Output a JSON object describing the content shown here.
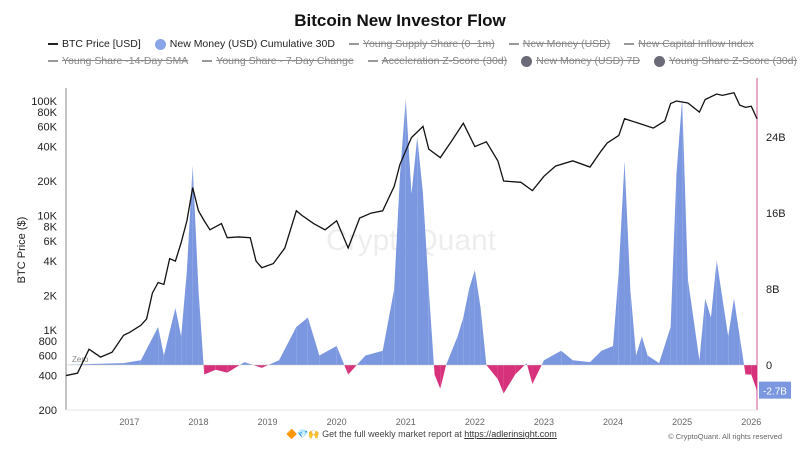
{
  "chart_data": {
    "type": "line+area",
    "title": "Bitcoin New Investor Flow",
    "ylabel_left": "BTC Price ($)",
    "left_axis": {
      "scale": "log",
      "range": [
        200,
        130000
      ],
      "ticks": [
        200,
        400,
        600,
        800,
        1000,
        2000,
        4000,
        6000,
        8000,
        10000,
        20000,
        40000,
        60000,
        80000,
        100000
      ],
      "tick_labels": [
        "200",
        "400",
        "600",
        "800",
        "1K",
        "2K",
        "4K",
        "6K",
        "8K",
        "10K",
        "20K",
        "40K",
        "60K",
        "80K",
        "100K"
      ]
    },
    "right_axis": {
      "scale": "linear",
      "range": [
        -4.7,
        28.5
      ],
      "ticks": [
        0,
        8,
        16,
        24
      ],
      "tick_labels": [
        "0",
        "8B",
        "16B",
        "24B"
      ],
      "last_value_label": "-2.7B"
    },
    "x_axis": {
      "range": [
        "2016-02",
        "2026-02"
      ],
      "tick_labels": [
        "2017",
        "2018",
        "2019",
        "2020",
        "2021",
        "2022",
        "2023",
        "2024",
        "2025",
        "2026"
      ]
    },
    "zero_label": "Zero",
    "grid": false,
    "legend_placement": "top",
    "legend": [
      {
        "label": "BTC Price [USD]",
        "kind": "line",
        "color": "#222222",
        "enabled": true
      },
      {
        "label": "New Money (USD) Cumulative 30D",
        "kind": "dot",
        "color": "#8aa6e8",
        "enabled": true
      },
      {
        "label": "Young Supply Share (0~1m)",
        "kind": "line",
        "enabled": false
      },
      {
        "label": "New Money (USD)",
        "kind": "line",
        "enabled": false
      },
      {
        "label": "New Capital Inflow Index",
        "kind": "line",
        "enabled": false
      },
      {
        "label": "Young Share -14-Day SMA",
        "kind": "line",
        "enabled": false
      },
      {
        "label": "Young Share - 7-Day Change",
        "kind": "line",
        "enabled": false
      },
      {
        "label": "Acceleration Z-Score (30d)",
        "kind": "line",
        "enabled": false
      },
      {
        "label": "New Money (USD) 7D",
        "kind": "dot",
        "color": "#6b6b78",
        "enabled": false
      },
      {
        "label": "Young Share Z-Score (30d)",
        "kind": "dot",
        "color": "#6b6b78",
        "enabled": false
      }
    ],
    "colors": {
      "price": "#111111",
      "positive": "#7b97e0",
      "negative": "#d6317a",
      "right_axis_line": "#e8a8c8",
      "badge": "#7b97e0"
    },
    "series": [
      {
        "name": "BTC Price [USD]",
        "axis": "left",
        "points": [
          [
            "2016-02",
            400
          ],
          [
            "2016-04",
            420
          ],
          [
            "2016-06",
            680
          ],
          [
            "2016-08",
            580
          ],
          [
            "2016-10",
            640
          ],
          [
            "2016-12",
            900
          ],
          [
            "2017-01",
            950
          ],
          [
            "2017-03",
            1100
          ],
          [
            "2017-04",
            1250
          ],
          [
            "2017-05",
            2100
          ],
          [
            "2017-06",
            2600
          ],
          [
            "2017-07",
            2500
          ],
          [
            "2017-08",
            4200
          ],
          [
            "2017-09",
            4000
          ],
          [
            "2017-10",
            5800
          ],
          [
            "2017-11",
            9000
          ],
          [
            "2017-12",
            17500
          ],
          [
            "2018-01",
            11000
          ],
          [
            "2018-02",
            9000
          ],
          [
            "2018-03",
            7500
          ],
          [
            "2018-05",
            8500
          ],
          [
            "2018-06",
            6400
          ],
          [
            "2018-08",
            6500
          ],
          [
            "2018-10",
            6400
          ],
          [
            "2018-11",
            4000
          ],
          [
            "2018-12",
            3500
          ],
          [
            "2019-02",
            3800
          ],
          [
            "2019-04",
            5200
          ],
          [
            "2019-06",
            11000
          ],
          [
            "2019-07",
            10000
          ],
          [
            "2019-09",
            8500
          ],
          [
            "2019-11",
            7500
          ],
          [
            "2020-01",
            9000
          ],
          [
            "2020-03",
            5200
          ],
          [
            "2020-05",
            9500
          ],
          [
            "2020-07",
            10500
          ],
          [
            "2020-09",
            11000
          ],
          [
            "2020-11",
            18000
          ],
          [
            "2020-12",
            28000
          ],
          [
            "2021-02",
            48000
          ],
          [
            "2021-04",
            60000
          ],
          [
            "2021-05",
            38000
          ],
          [
            "2021-07",
            32000
          ],
          [
            "2021-09",
            45000
          ],
          [
            "2021-11",
            64000
          ],
          [
            "2022-01",
            40000
          ],
          [
            "2022-03",
            44000
          ],
          [
            "2022-05",
            30000
          ],
          [
            "2022-06",
            20000
          ],
          [
            "2022-09",
            19500
          ],
          [
            "2022-11",
            16500
          ],
          [
            "2023-01",
            22000
          ],
          [
            "2023-03",
            27000
          ],
          [
            "2023-06",
            30000
          ],
          [
            "2023-09",
            26500
          ],
          [
            "2023-11",
            37000
          ],
          [
            "2023-12",
            43000
          ],
          [
            "2024-02",
            50000
          ],
          [
            "2024-03",
            70000
          ],
          [
            "2024-05",
            65000
          ],
          [
            "2024-08",
            58000
          ],
          [
            "2024-10",
            67000
          ],
          [
            "2024-11",
            95000
          ],
          [
            "2024-12",
            100000
          ],
          [
            "2025-02",
            96000
          ],
          [
            "2025-04",
            80000
          ],
          [
            "2025-05",
            103000
          ],
          [
            "2025-07",
            115000
          ],
          [
            "2025-08",
            112000
          ],
          [
            "2025-10",
            118000
          ],
          [
            "2025-11",
            92000
          ],
          [
            "2025-12",
            88000
          ],
          [
            "2026-01",
            90000
          ],
          [
            "2026-02",
            70000
          ]
        ]
      },
      {
        "name": "New Money (USD) Cumulative 30D",
        "axis": "right",
        "unit": "B USD",
        "points": [
          [
            "2016-02",
            0
          ],
          [
            "2016-06",
            0.1
          ],
          [
            "2016-12",
            0.2
          ],
          [
            "2017-03",
            0.5
          ],
          [
            "2017-06",
            4
          ],
          [
            "2017-07",
            1
          ],
          [
            "2017-09",
            6
          ],
          [
            "2017-10",
            3
          ],
          [
            "2017-11",
            10
          ],
          [
            "2017-12",
            21
          ],
          [
            "2018-01",
            8
          ],
          [
            "2018-02",
            -1
          ],
          [
            "2018-04",
            -0.5
          ],
          [
            "2018-06",
            -0.8
          ],
          [
            "2018-09",
            0.3
          ],
          [
            "2018-12",
            -0.3
          ],
          [
            "2019-03",
            0.5
          ],
          [
            "2019-06",
            4
          ],
          [
            "2019-08",
            5
          ],
          [
            "2019-10",
            1
          ],
          [
            "2020-01",
            2
          ],
          [
            "2020-03",
            -1
          ],
          [
            "2020-06",
            1
          ],
          [
            "2020-09",
            1.5
          ],
          [
            "2020-11",
            8
          ],
          [
            "2020-12",
            20
          ],
          [
            "2021-01",
            28
          ],
          [
            "2021-02",
            18
          ],
          [
            "2021-03",
            24
          ],
          [
            "2021-04",
            18
          ],
          [
            "2021-05",
            8
          ],
          [
            "2021-06",
            -1
          ],
          [
            "2021-07",
            -2.5
          ],
          [
            "2021-08",
            0
          ],
          [
            "2021-10",
            3
          ],
          [
            "2021-11",
            5
          ],
          [
            "2021-12",
            8
          ],
          [
            "2022-01",
            10
          ],
          [
            "2022-02",
            6
          ],
          [
            "2022-03",
            0
          ],
          [
            "2022-05",
            -1.5
          ],
          [
            "2022-06",
            -3
          ],
          [
            "2022-08",
            -1
          ],
          [
            "2022-10",
            0.2
          ],
          [
            "2022-11",
            -2
          ],
          [
            "2023-01",
            0.5
          ],
          [
            "2023-04",
            1.5
          ],
          [
            "2023-06",
            0.5
          ],
          [
            "2023-09",
            0.3
          ],
          [
            "2023-11",
            1.5
          ],
          [
            "2024-01",
            2
          ],
          [
            "2024-02",
            10
          ],
          [
            "2024-03",
            21.5
          ],
          [
            "2024-04",
            8
          ],
          [
            "2024-05",
            1
          ],
          [
            "2024-06",
            3
          ],
          [
            "2024-07",
            1
          ],
          [
            "2024-09",
            0.2
          ],
          [
            "2024-11",
            4
          ],
          [
            "2024-12",
            20
          ],
          [
            "2025-01",
            28
          ],
          [
            "2025-02",
            9
          ],
          [
            "2025-04",
            0.5
          ],
          [
            "2025-05",
            7
          ],
          [
            "2025-06",
            5
          ],
          [
            "2025-07",
            11
          ],
          [
            "2025-08",
            7
          ],
          [
            "2025-09",
            3
          ],
          [
            "2025-10",
            7
          ],
          [
            "2025-11",
            3
          ],
          [
            "2025-12",
            -1
          ],
          [
            "2026-01",
            -1
          ],
          [
            "2026-02",
            -2.7
          ]
        ]
      }
    ]
  },
  "watermark": "CryptoQuant",
  "footer": {
    "emoji": "🔶💎🙌",
    "text": "Get the full weekly market report at",
    "link": "https://adlerinsight.com",
    "copyright": "© CryptoQuant. All rights reserved"
  }
}
